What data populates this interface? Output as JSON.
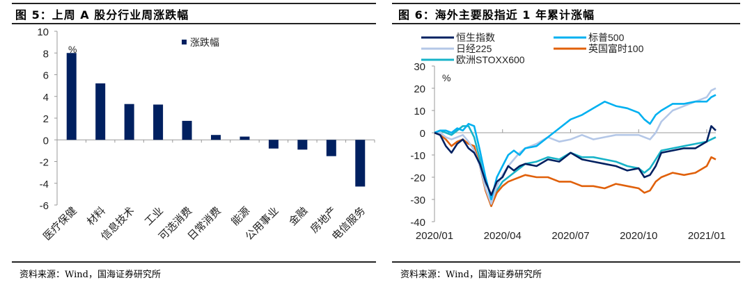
{
  "figure5": {
    "title": "图 5：上周 A 股分行业周涨跌幅",
    "source": "资料来源：Wind，国海证券研究所"
  },
  "figure6": {
    "title": "图 6：海外主要股指近 1 年累计涨幅",
    "source": "资料来源：Wind，国海证券研究所"
  },
  "chart_data": [
    {
      "type": "bar",
      "title": "上周A股分行业周涨跌幅",
      "unit_label": "%",
      "xlabel": "",
      "ylabel": "%",
      "ylim": [
        -6,
        10
      ],
      "yticks": [
        10,
        8,
        6,
        4,
        2,
        0,
        -2,
        -4,
        -6
      ],
      "grid": false,
      "legend": {
        "position": "top-right",
        "entries": [
          "涨跌幅"
        ]
      },
      "categories": [
        "医疗保健",
        "材料",
        "信息技术",
        "工业",
        "可选消费",
        "日常消费",
        "能源",
        "公用事业",
        "金融",
        "房地产",
        "电信服务"
      ],
      "series": [
        {
          "name": "涨跌幅",
          "color": "#002060",
          "values": [
            8.0,
            5.2,
            3.3,
            3.25,
            1.75,
            0.45,
            0.3,
            -0.8,
            -0.9,
            -1.5,
            -4.3
          ]
        }
      ]
    },
    {
      "type": "line",
      "title": "海外主要股指近1年累计涨幅",
      "unit_label": "%",
      "ylabel": "%",
      "ylim": [
        -40,
        30
      ],
      "yticks": [
        30,
        20,
        10,
        0,
        -10,
        -20,
        -30,
        -40
      ],
      "xticks": [
        "2020/01",
        "2020/04",
        "2020/07",
        "2020/10",
        "2021/01"
      ],
      "x_range_months": [
        0,
        12.4
      ],
      "grid": false,
      "legend": {
        "position": "top",
        "columns": 2
      },
      "x": [
        0,
        0.25,
        0.5,
        0.75,
        1,
        1.25,
        1.5,
        1.75,
        2,
        2.25,
        2.5,
        2.75,
        3,
        3.25,
        3.5,
        3.75,
        4,
        4.5,
        5,
        5.5,
        6,
        6.5,
        7,
        7.5,
        8,
        8.5,
        9,
        9.25,
        9.5,
        9.75,
        10,
        10.5,
        11,
        11.5,
        12,
        12.2,
        12.4
      ],
      "series": [
        {
          "name": "恒生指数",
          "color": "#002060",
          "values": [
            0,
            -1,
            -6,
            -9,
            -5,
            -3,
            -7,
            -9,
            -14,
            -22,
            -28,
            -22,
            -20,
            -15,
            -17,
            -15,
            -14,
            -15,
            -12,
            -13,
            -9,
            -12,
            -13,
            -14,
            -15,
            -17,
            -16,
            -20,
            -19,
            -15,
            -9,
            -8,
            -7,
            -7,
            -4,
            3,
            1
          ]
        },
        {
          "name": "标普500",
          "color": "#00B0F0",
          "values": [
            0,
            1,
            1,
            0,
            2,
            1,
            4,
            3,
            -8,
            -20,
            -30,
            -20,
            -15,
            -10,
            -8,
            -10,
            -7,
            -6,
            -2,
            2,
            6,
            8,
            11,
            14,
            12,
            11,
            9,
            6,
            4,
            8,
            10,
            13,
            13,
            14,
            14,
            16,
            17
          ]
        },
        {
          "name": "日经225",
          "color": "#B4C7E7",
          "values": [
            0,
            0,
            -2,
            -3,
            -2,
            -1,
            -4,
            -8,
            -15,
            -25,
            -32,
            -24,
            -19,
            -15,
            -12,
            -9,
            -7,
            -5,
            -2,
            -4,
            -3,
            -1,
            -3,
            -2,
            -1,
            -1,
            -1,
            -2,
            -3,
            0,
            5,
            10,
            12,
            14,
            16,
            19,
            20
          ]
        },
        {
          "name": "英国富时100",
          "color": "#E0600A",
          "values": [
            0,
            -1,
            -3,
            -6,
            -4,
            -3,
            -5,
            -6,
            -15,
            -26,
            -33,
            -27,
            -24,
            -22,
            -21,
            -20,
            -19,
            -20,
            -20,
            -22,
            -22,
            -24,
            -24,
            -25,
            -23,
            -24,
            -25,
            -27,
            -26,
            -22,
            -20,
            -18,
            -19,
            -18,
            -15,
            -11,
            -12
          ]
        },
        {
          "name": "欧洲STOXX600",
          "color": "#17B3C8",
          "values": [
            0,
            1,
            0,
            -1,
            1,
            3,
            3,
            -2,
            -12,
            -25,
            -33,
            -26,
            -22,
            -20,
            -18,
            -16,
            -14,
            -13,
            -11,
            -12,
            -9,
            -11,
            -11,
            -12,
            -13,
            -15,
            -16,
            -18,
            -16,
            -12,
            -8,
            -7,
            -6,
            -5,
            -4,
            -3,
            -2
          ]
        }
      ]
    }
  ]
}
